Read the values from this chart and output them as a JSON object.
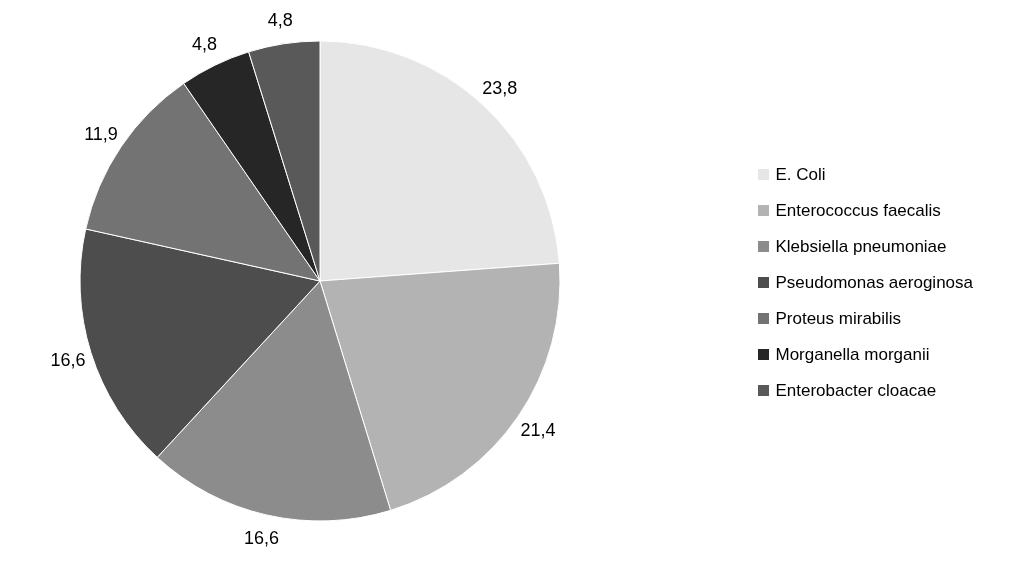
{
  "chart_data": {
    "type": "pie",
    "categories": [
      "E. Coli",
      "Enterococcus faecalis",
      "Klebsiella pneumoniae",
      "Pseudomonas aeroginosa",
      "Proteus mirabilis",
      "Morganella morganii",
      "Enterobacter cloacae"
    ],
    "values": [
      23.8,
      21.4,
      16.6,
      16.6,
      11.9,
      4.8,
      4.8
    ],
    "value_labels": [
      "23,8",
      "21,4",
      "16,6",
      "16,6",
      "11,9",
      "4,8",
      "4,8"
    ],
    "colors": [
      "#e6e6e6",
      "#b3b3b3",
      "#8c8c8c",
      "#4d4d4d",
      "#737373",
      "#262626",
      "#595959"
    ],
    "legend": "right"
  }
}
